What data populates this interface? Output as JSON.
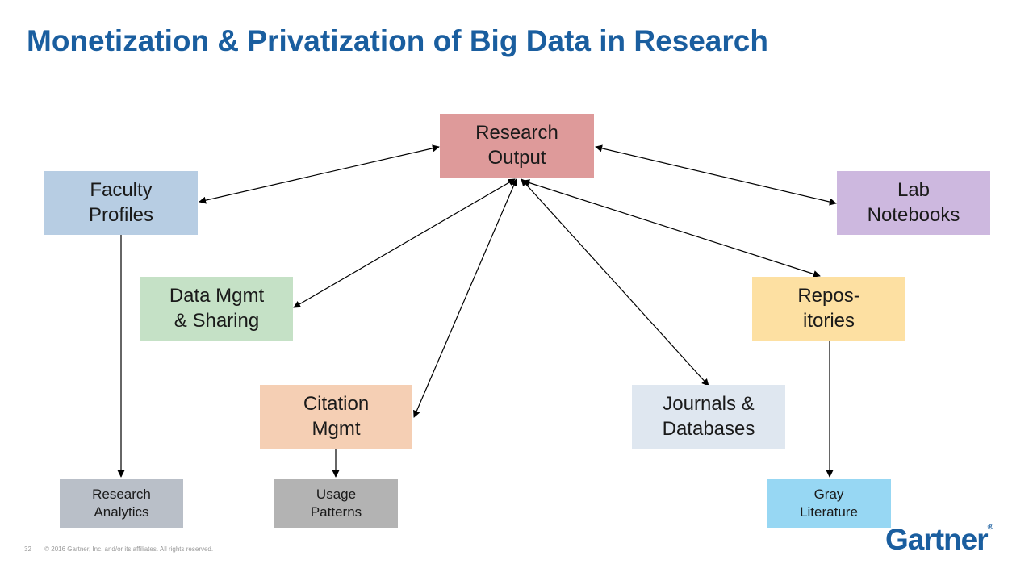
{
  "title": "Monetization & Privatization of Big Data in Research",
  "nodes": {
    "research_output": {
      "line1": "Research",
      "line2": "Output",
      "color": "#de9a9a"
    },
    "faculty_profiles": {
      "line1": "Faculty",
      "line2": "Profiles",
      "color": "#b7cde3"
    },
    "lab_notebooks": {
      "line1": "Lab",
      "line2": "Notebooks",
      "color": "#cdb8df"
    },
    "data_mgmt": {
      "line1": "Data Mgmt",
      "line2": "& Sharing",
      "color": "#c5e1c6"
    },
    "repositories": {
      "line1": "Repos-",
      "line2": "itories",
      "color": "#fde0a2"
    },
    "citation_mgmt": {
      "line1": "Citation",
      "line2": "Mgmt",
      "color": "#f5cfb4"
    },
    "journals": {
      "line1": "Journals &",
      "line2": "Databases",
      "color": "#dfe7f0"
    },
    "research_analytics": {
      "line1": "Research",
      "line2": "Analytics",
      "color": "#b9bfc8"
    },
    "usage_patterns": {
      "line1": "Usage",
      "line2": "Patterns",
      "color": "#b3b3b3"
    },
    "gray_literature": {
      "line1": "Gray",
      "line2": "Literature",
      "color": "#97d7f3"
    }
  },
  "footer": {
    "page_number": "32",
    "copyright": "© 2016 Gartner, Inc. and/or its affiliates. All rights reserved."
  },
  "logo": {
    "text": "Gartner",
    "mark": "®",
    "color": "#1a5e9f"
  },
  "accent_color": "#1a5e9f"
}
